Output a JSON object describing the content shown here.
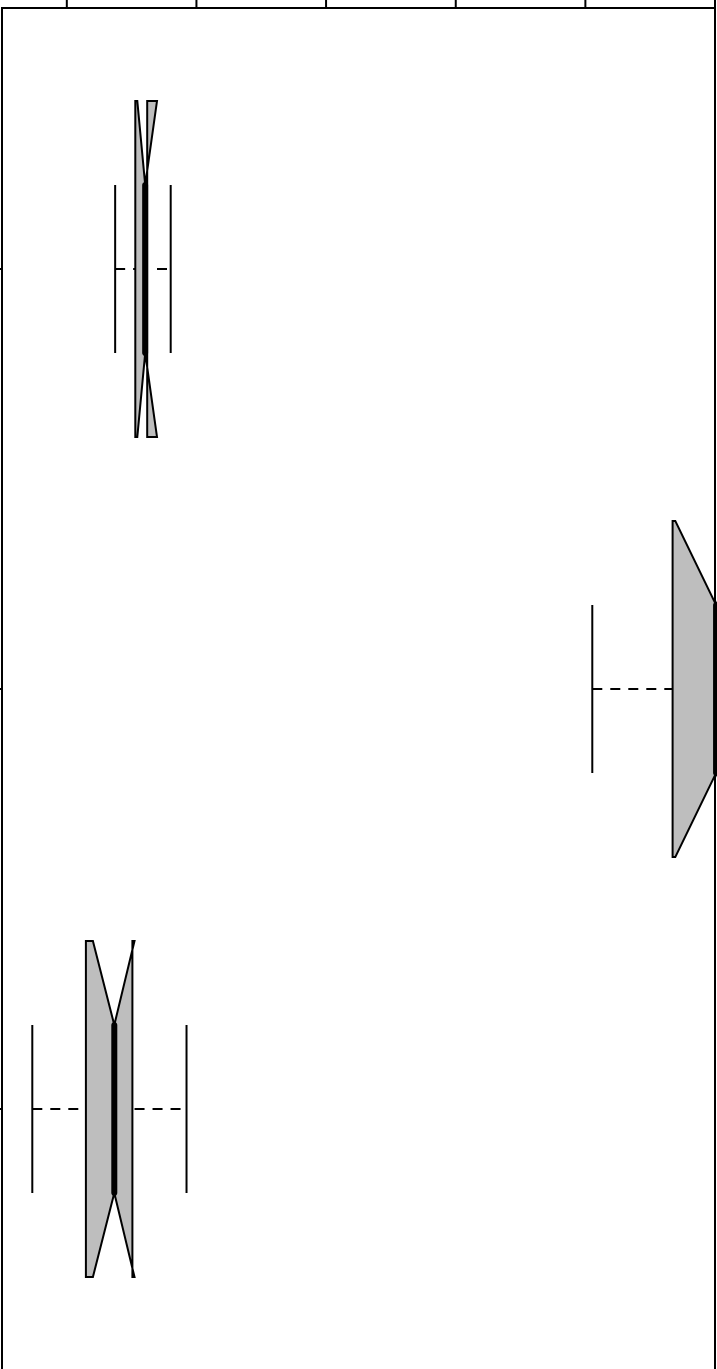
{
  "chart_data": {
    "type": "boxplot",
    "orientation": "horizontal",
    "notched": true,
    "box_fill": "#bebebe",
    "line_color": "#000000",
    "xlim": [
      0,
      1
    ],
    "x_tick_values": [
      0.0909,
      0.2727,
      0.4545,
      0.6364,
      0.8182,
      1.0
    ],
    "x_tick_labels": [],
    "y_tick_labels": [],
    "groups": [
      {
        "whisker_low": 0.1587,
        "q1": 0.187,
        "median": 0.2008,
        "q3": 0.2036,
        "whisker_high": 0.2366,
        "notch_low": 0.1898,
        "notch_high": 0.2174
      },
      {
        "whisker_low": 0.8279,
        "q1": 0.9406,
        "median": 1.0015,
        "q3": 1.0511,
        "whisker_high": 1.089,
        "notch_low": 0.9443,
        "notch_high": 1.0521
      },
      {
        "whisker_low": 0.0425,
        "q1": 0.1177,
        "median": 0.1575,
        "q3": 0.1829,
        "whisker_high": 0.2588,
        "notch_low": 0.1275,
        "notch_high": 0.1859
      }
    ],
    "title": "",
    "xlabel": "",
    "ylabel": "",
    "grid": false,
    "legend": false
  }
}
